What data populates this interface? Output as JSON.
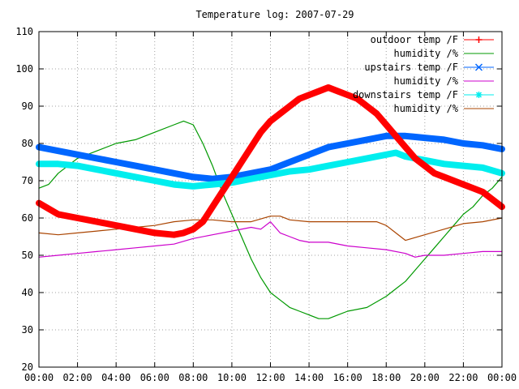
{
  "chart_data": {
    "type": "line",
    "title": "Temperature log: 2007-07-29",
    "xlabel": "",
    "ylabel": "",
    "xlim": [
      0,
      24
    ],
    "ylim": [
      20,
      110
    ],
    "grid": true,
    "legend_position": "top-right",
    "x_ticks": [
      "00:00",
      "02:00",
      "04:00",
      "06:00",
      "08:00",
      "10:00",
      "12:00",
      "14:00",
      "16:00",
      "18:00",
      "20:00",
      "22:00",
      "00:00"
    ],
    "y_ticks": [
      "20",
      "30",
      "40",
      "50",
      "60",
      "70",
      "80",
      "90",
      "100",
      "110"
    ],
    "series": [
      {
        "name": "outdoor temp /F",
        "color": "#ff0000",
        "marker": "plus",
        "style": "thick",
        "x": [
          0,
          1,
          2,
          3,
          4,
          5,
          6,
          7,
          7.5,
          8,
          8.5,
          9,
          9.5,
          10,
          10.5,
          11,
          11.5,
          12,
          12.5,
          13,
          13.5,
          14,
          14.5,
          15,
          15.5,
          16,
          16.5,
          17,
          17.5,
          18,
          18.5,
          19,
          19.5,
          20,
          20.5,
          21,
          21.5,
          22,
          22.5,
          23,
          23.5,
          24
        ],
        "y": [
          64,
          61,
          60,
          59,
          58,
          57,
          56,
          55.5,
          56,
          57,
          59,
          63,
          67,
          71,
          75,
          79,
          83,
          86,
          88,
          90,
          92,
          93,
          94,
          95,
          94,
          93,
          92,
          90,
          88,
          85,
          82,
          79,
          76,
          74,
          72,
          71,
          70,
          69,
          68,
          67,
          65,
          63
        ]
      },
      {
        "name": "humidity /%",
        "color": "#009900",
        "marker": "none",
        "style": "thin",
        "x": [
          0,
          0.5,
          1,
          2,
          3,
          4,
          5,
          6,
          7,
          7.5,
          8,
          8.5,
          9,
          9.5,
          10,
          10.5,
          11,
          11.5,
          12,
          12.5,
          13,
          13.5,
          14,
          14.5,
          15,
          15.5,
          16,
          17,
          18,
          18.5,
          19,
          19.5,
          20,
          20.5,
          21,
          21.5,
          22,
          22.5,
          23,
          23.5,
          24
        ],
        "y": [
          68,
          69,
          72,
          76,
          78,
          80,
          81,
          83,
          85,
          86,
          85,
          80,
          74,
          67,
          61,
          55,
          49,
          44,
          40,
          38,
          36,
          35,
          34,
          33,
          33,
          34,
          35,
          36,
          39,
          41,
          43,
          46,
          49,
          52,
          55,
          58,
          61,
          63,
          66,
          68,
          71
        ]
      },
      {
        "name": "upstairs temp /F",
        "color": "#0066ff",
        "marker": "x",
        "style": "thick",
        "x": [
          0,
          1,
          2,
          3,
          4,
          5,
          6,
          7,
          8,
          9,
          10,
          11,
          12,
          13,
          14,
          15,
          16,
          17,
          18,
          19,
          20,
          21,
          22,
          23,
          24
        ],
        "y": [
          79,
          78,
          77,
          76,
          75,
          74,
          73,
          72,
          71,
          70.5,
          71,
          72,
          73,
          75,
          77,
          79,
          80,
          81,
          82,
          82,
          81.5,
          81,
          80,
          79.5,
          78.5
        ]
      },
      {
        "name": "humidity /%",
        "color": "#cc00cc",
        "marker": "none",
        "style": "thin",
        "x": [
          0,
          1,
          2,
          3,
          4,
          5,
          6,
          7,
          8,
          9,
          10,
          11,
          11.5,
          12,
          12.5,
          13,
          13.5,
          14,
          15,
          16,
          17,
          18,
          19,
          19.5,
          20,
          21,
          22,
          23,
          24
        ],
        "y": [
          49.5,
          50,
          50.5,
          51,
          51.5,
          52,
          52.5,
          53,
          54.5,
          55.5,
          56.5,
          57.5,
          57,
          59,
          56,
          55,
          54,
          53.5,
          53.5,
          52.5,
          52,
          51.5,
          50.5,
          49.5,
          50,
          50,
          50.5,
          51,
          51
        ]
      },
      {
        "name": "downstairs temp /F",
        "color": "#00eeee",
        "marker": "star",
        "style": "thick",
        "x": [
          0,
          1,
          2,
          3,
          4,
          5,
          6,
          7,
          8,
          9,
          10,
          11,
          12,
          13,
          14,
          15,
          16,
          17,
          18,
          18.5,
          19,
          20,
          21,
          22,
          23,
          24
        ],
        "y": [
          74.5,
          74.5,
          74,
          73,
          72,
          71,
          70,
          69,
          68.5,
          69,
          69.5,
          70.5,
          71.5,
          72.5,
          73,
          74,
          75,
          76,
          77,
          77.5,
          76.5,
          75.5,
          74.5,
          74,
          73.5,
          72
        ]
      },
      {
        "name": "humidity /%",
        "color": "#aa4400",
        "marker": "none",
        "style": "thin",
        "x": [
          0,
          1,
          2,
          3,
          4,
          5,
          6,
          7,
          8,
          9,
          10,
          11,
          12,
          12.5,
          13,
          14,
          15,
          16,
          17,
          17.5,
          18,
          18.5,
          19,
          20,
          21,
          22,
          23,
          24
        ],
        "y": [
          56,
          55.5,
          56,
          56.5,
          57,
          57.5,
          58,
          59,
          59.5,
          59.5,
          59,
          59,
          60.5,
          60.5,
          59.5,
          59,
          59,
          59,
          59,
          59,
          58,
          56,
          54,
          55.5,
          57,
          58.5,
          59,
          60
        ]
      }
    ]
  }
}
